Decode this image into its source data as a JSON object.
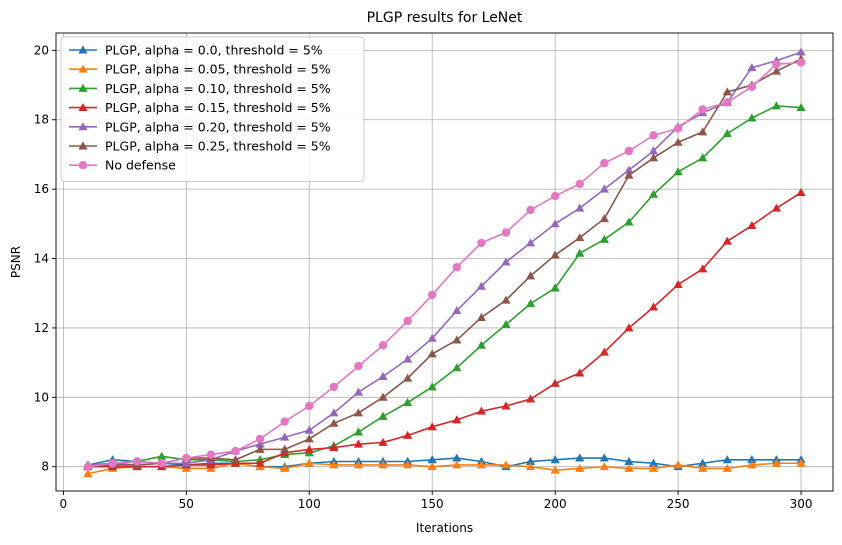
{
  "chart_data": {
    "type": "line",
    "title": "PLGP results for LeNet",
    "xlabel": "Iterations",
    "ylabel": "PSNR",
    "xlim": [
      -3,
      313
    ],
    "ylim": [
      7.3,
      20.5
    ],
    "xticks": [
      0,
      50,
      100,
      150,
      200,
      250,
      300
    ],
    "yticks": [
      8,
      10,
      12,
      14,
      16,
      18,
      20
    ],
    "grid": true,
    "legend_position": "top-left",
    "x": [
      10,
      20,
      30,
      40,
      50,
      60,
      70,
      80,
      90,
      100,
      110,
      120,
      130,
      140,
      150,
      160,
      170,
      180,
      190,
      200,
      210,
      220,
      230,
      240,
      250,
      260,
      270,
      280,
      290,
      300
    ],
    "series": [
      {
        "name": "PLGP, alpha = 0.0, threshold = 5%",
        "color": "#1f77b4",
        "marker": "triangle",
        "values": [
          8.05,
          8.2,
          8.15,
          8.1,
          8.05,
          8.1,
          8.1,
          8.0,
          8.0,
          8.1,
          8.15,
          8.15,
          8.15,
          8.15,
          8.2,
          8.25,
          8.15,
          8.0,
          8.15,
          8.2,
          8.25,
          8.25,
          8.15,
          8.1,
          8.0,
          8.1,
          8.2,
          8.2,
          8.2,
          8.2
        ]
      },
      {
        "name": "PLGP, alpha = 0.05, threshold = 5%",
        "color": "#ff7f0e",
        "marker": "triangle",
        "values": [
          7.8,
          7.95,
          8.0,
          8.0,
          7.95,
          7.95,
          8.1,
          8.0,
          7.95,
          8.1,
          8.05,
          8.05,
          8.05,
          8.05,
          8.0,
          8.05,
          8.05,
          8.05,
          8.0,
          7.9,
          7.95,
          8.0,
          7.95,
          7.95,
          8.05,
          7.95,
          7.95,
          8.05,
          8.1,
          8.1
        ]
      },
      {
        "name": "PLGP, alpha = 0.10, threshold = 5%",
        "color": "#2ca02c",
        "marker": "triangle",
        "values": [
          8.0,
          8.1,
          8.15,
          8.3,
          8.2,
          8.2,
          8.15,
          8.2,
          8.35,
          8.4,
          8.6,
          9.0,
          9.45,
          9.85,
          10.3,
          10.85,
          11.5,
          12.1,
          12.7,
          13.15,
          14.15,
          14.55,
          15.05,
          15.85,
          16.5,
          16.9,
          17.6,
          18.05,
          18.4,
          18.35
        ]
      },
      {
        "name": "PLGP, alpha = 0.15, threshold = 5%",
        "color": "#d62728",
        "marker": "triangle",
        "values": [
          8.0,
          8.0,
          8.0,
          8.0,
          8.05,
          8.05,
          8.1,
          8.1,
          8.4,
          8.5,
          8.55,
          8.65,
          8.7,
          8.9,
          9.15,
          9.35,
          9.6,
          9.75,
          9.95,
          10.4,
          10.7,
          11.3,
          12.0,
          12.6,
          13.25,
          13.7,
          14.5,
          14.95,
          15.45,
          15.9
        ]
      },
      {
        "name": "PLGP, alpha = 0.20, threshold = 5%",
        "color": "#9467bd",
        "marker": "triangle",
        "values": [
          8.05,
          8.1,
          8.05,
          8.1,
          8.1,
          8.2,
          8.45,
          8.65,
          8.85,
          9.05,
          9.55,
          10.15,
          10.6,
          11.1,
          11.7,
          12.5,
          13.2,
          13.9,
          14.45,
          15.0,
          15.45,
          16.0,
          16.55,
          17.1,
          17.8,
          18.2,
          18.5,
          19.5,
          19.7,
          19.95
        ]
      },
      {
        "name": "PLGP, alpha = 0.25, threshold = 5%",
        "color": "#8c564b",
        "marker": "triangle",
        "values": [
          8.0,
          8.05,
          8.05,
          8.1,
          8.25,
          8.25,
          8.2,
          8.5,
          8.5,
          8.8,
          9.25,
          9.55,
          10.0,
          10.55,
          11.25,
          11.65,
          12.3,
          12.8,
          13.5,
          14.1,
          14.6,
          15.15,
          16.4,
          16.9,
          17.35,
          17.65,
          18.8,
          19.0,
          19.4,
          19.75
        ]
      },
      {
        "name": "No defense",
        "color": "#e377c2",
        "marker": "circle",
        "values": [
          8.0,
          8.1,
          8.15,
          8.1,
          8.25,
          8.35,
          8.45,
          8.8,
          9.3,
          9.75,
          10.3,
          10.9,
          11.5,
          12.2,
          12.95,
          13.75,
          14.45,
          14.75,
          15.4,
          15.8,
          16.15,
          16.75,
          17.1,
          17.55,
          17.75,
          18.3,
          18.5,
          18.95,
          19.6,
          19.65
        ]
      }
    ]
  }
}
